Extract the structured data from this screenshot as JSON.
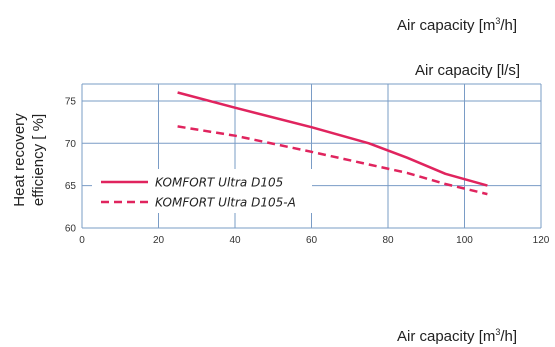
{
  "top_labels": {
    "air_capacity_m3h_prefix": "Air capacity [m",
    "air_capacity_m3h_sup": "3",
    "air_capacity_m3h_suffix": "/h]",
    "air_capacity_ls": "Air capacity [l/s]",
    "air_capacity_m3h_bottom_prefix": "Air capacity [m",
    "air_capacity_m3h_bottom_sup": "3",
    "air_capacity_m3h_bottom_suffix": "/h]"
  },
  "chart_data": {
    "type": "line",
    "ylabel_line1": "Heat recovery",
    "ylabel_line2": "efficiency [ %]",
    "xlim": [
      0,
      120
    ],
    "ylim": [
      60,
      77
    ],
    "x_ticks": [
      0,
      20,
      40,
      60,
      80,
      100,
      120
    ],
    "y_ticks": [
      60,
      65,
      70,
      75
    ],
    "grid": true,
    "grid_color": "#7a9cc6",
    "legend_position": "left",
    "series": [
      {
        "name": "KOMFORT Ultra D105",
        "color": "#e0245e",
        "dash": "solid",
        "points": [
          [
            25,
            76
          ],
          [
            40,
            74.2
          ],
          [
            60,
            71.9
          ],
          [
            75,
            70
          ],
          [
            85,
            68.3
          ],
          [
            95,
            66.4
          ],
          [
            106,
            65
          ]
        ]
      },
      {
        "name": "KOMFORT Ultra D105-A",
        "color": "#e0245e",
        "dash": "dashed",
        "points": [
          [
            25,
            72
          ],
          [
            40,
            70.9
          ],
          [
            60,
            69
          ],
          [
            75,
            67.5
          ],
          [
            85,
            66.5
          ],
          [
            95,
            65.2
          ],
          [
            106,
            64
          ]
        ]
      }
    ]
  }
}
